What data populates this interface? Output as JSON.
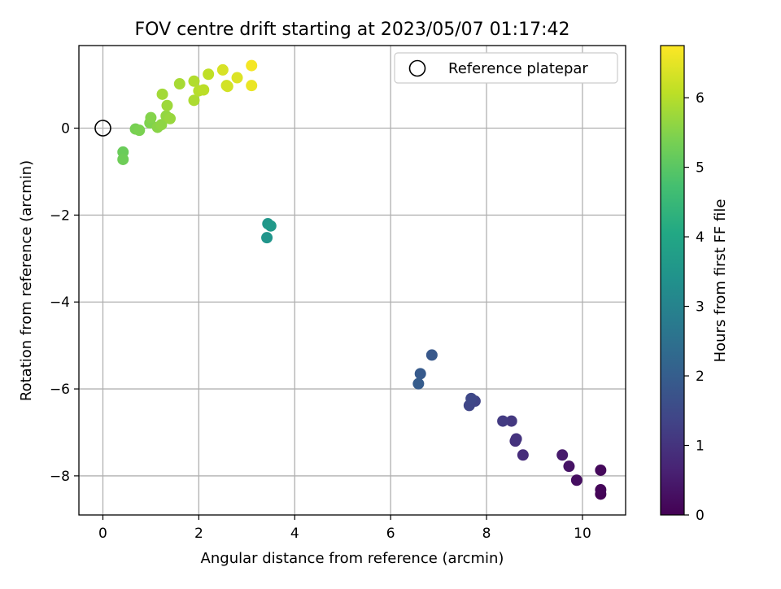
{
  "chart_data": {
    "type": "scatter",
    "title": "FOV centre drift starting at 2023/05/07 01:17:42",
    "xlabel": "Angular distance from reference (arcmin)",
    "ylabel": "Rotation from reference (arcmin)",
    "xlim": [
      -0.5,
      10.9
    ],
    "ylim": [
      -8.9,
      1.9
    ],
    "xticks": [
      0,
      2,
      4,
      6,
      8,
      10
    ],
    "xtick_labels": [
      "0",
      "2",
      "4",
      "6",
      "8",
      "10"
    ],
    "yticks": [
      0,
      -2,
      -4,
      -6,
      -8
    ],
    "ytick_labels": [
      "0",
      "−2",
      "−4",
      "−6",
      "−8"
    ],
    "grid": true,
    "legend": {
      "position": "top-right",
      "label": "Reference platepar"
    },
    "reference_point": {
      "x": 0,
      "y": 0
    },
    "colorbar": {
      "label": "Hours from first FF file",
      "min": 0,
      "max": 6.75,
      "ticks": [
        0,
        1,
        2,
        3,
        4,
        5,
        6
      ],
      "tick_labels": [
        "0",
        "1",
        "2",
        "3",
        "4",
        "5",
        "6"
      ],
      "colormap": "viridis"
    },
    "points": [
      {
        "x": 10.38,
        "y": -8.42,
        "h": 0.05
      },
      {
        "x": 10.38,
        "y": -8.32,
        "h": 0.1
      },
      {
        "x": 10.38,
        "y": -7.87,
        "h": 0.15
      },
      {
        "x": 9.88,
        "y": -8.1,
        "h": 0.25
      },
      {
        "x": 9.72,
        "y": -7.78,
        "h": 0.35
      },
      {
        "x": 9.58,
        "y": -7.52,
        "h": 0.5
      },
      {
        "x": 8.76,
        "y": -7.52,
        "h": 0.85
      },
      {
        "x": 8.6,
        "y": -7.2,
        "h": 0.95
      },
      {
        "x": 8.62,
        "y": -7.15,
        "h": 1.0
      },
      {
        "x": 8.52,
        "y": -6.74,
        "h": 1.1
      },
      {
        "x": 8.34,
        "y": -6.74,
        "h": 1.15
      },
      {
        "x": 7.76,
        "y": -6.28,
        "h": 1.35
      },
      {
        "x": 7.64,
        "y": -6.38,
        "h": 1.4
      },
      {
        "x": 7.68,
        "y": -6.22,
        "h": 1.45
      },
      {
        "x": 6.86,
        "y": -5.22,
        "h": 1.85
      },
      {
        "x": 6.62,
        "y": -5.65,
        "h": 1.9
      },
      {
        "x": 6.58,
        "y": -5.88,
        "h": 1.95
      },
      {
        "x": 3.44,
        "y": -2.2,
        "h": 3.55
      },
      {
        "x": 3.5,
        "y": -2.25,
        "h": 3.6
      },
      {
        "x": 3.42,
        "y": -2.52,
        "h": 3.5
      },
      {
        "x": 0.42,
        "y": -0.55,
        "h": 5.2
      },
      {
        "x": 0.42,
        "y": -0.72,
        "h": 5.25
      },
      {
        "x": 0.68,
        "y": -0.02,
        "h": 5.35
      },
      {
        "x": 0.76,
        "y": -0.05,
        "h": 5.4
      },
      {
        "x": 0.98,
        "y": 0.12,
        "h": 5.45
      },
      {
        "x": 1.0,
        "y": 0.24,
        "h": 5.5
      },
      {
        "x": 1.14,
        "y": 0.02,
        "h": 5.55
      },
      {
        "x": 1.22,
        "y": 0.08,
        "h": 5.6
      },
      {
        "x": 1.32,
        "y": 0.28,
        "h": 5.65
      },
      {
        "x": 1.4,
        "y": 0.22,
        "h": 5.7
      },
      {
        "x": 1.34,
        "y": 0.52,
        "h": 5.75
      },
      {
        "x": 1.24,
        "y": 0.78,
        "h": 5.8
      },
      {
        "x": 1.6,
        "y": 1.02,
        "h": 5.85
      },
      {
        "x": 1.9,
        "y": 0.64,
        "h": 5.9
      },
      {
        "x": 1.9,
        "y": 1.08,
        "h": 5.95
      },
      {
        "x": 2.0,
        "y": 0.86,
        "h": 6.0
      },
      {
        "x": 2.1,
        "y": 0.88,
        "h": 6.05
      },
      {
        "x": 2.2,
        "y": 1.24,
        "h": 6.1
      },
      {
        "x": 2.58,
        "y": 0.98,
        "h": 6.25
      },
      {
        "x": 2.6,
        "y": 0.96,
        "h": 6.3
      },
      {
        "x": 2.5,
        "y": 1.34,
        "h": 6.35
      },
      {
        "x": 2.8,
        "y": 1.16,
        "h": 6.4
      },
      {
        "x": 3.1,
        "y": 0.98,
        "h": 6.55
      },
      {
        "x": 3.1,
        "y": 1.44,
        "h": 6.65
      }
    ]
  }
}
